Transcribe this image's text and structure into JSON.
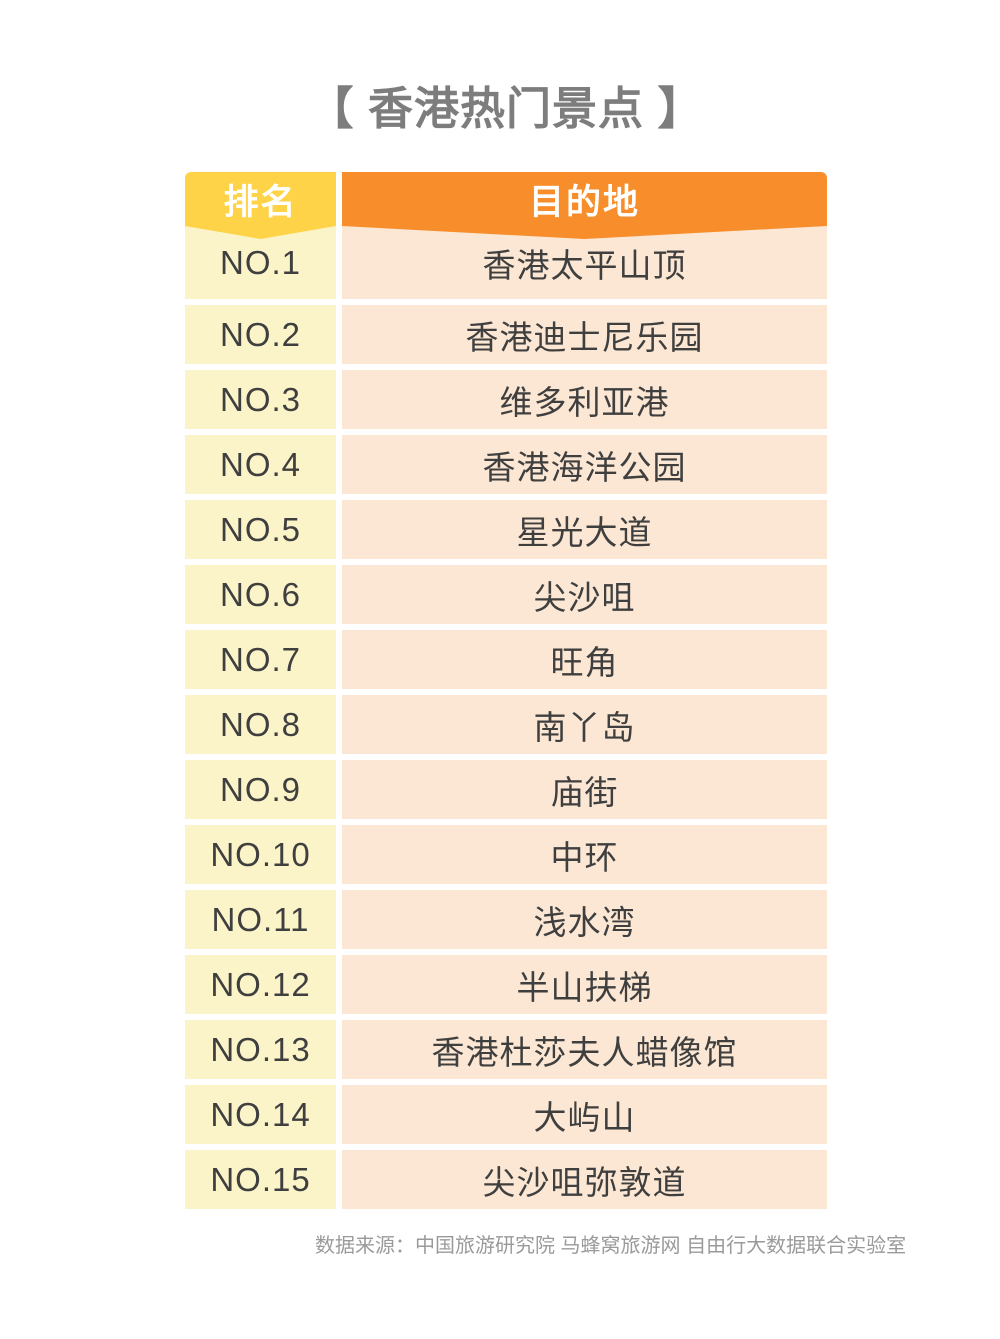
{
  "chart_data": {
    "type": "table",
    "title": "【 香港热门景点 】",
    "columns": [
      "排名",
      "目的地"
    ],
    "rows": [
      [
        "NO.1",
        "香港太平山顶"
      ],
      [
        "NO.2",
        "香港迪士尼乐园"
      ],
      [
        "NO.3",
        "维多利亚港"
      ],
      [
        "NO.4",
        "香港海洋公园"
      ],
      [
        "NO.5",
        "星光大道"
      ],
      [
        "NO.6",
        "尖沙咀"
      ],
      [
        "NO.7",
        "旺角"
      ],
      [
        "NO.8",
        "南丫岛"
      ],
      [
        "NO.9",
        "庙街"
      ],
      [
        "NO.10",
        "中环"
      ],
      [
        "NO.11",
        "浅水湾"
      ],
      [
        "NO.12",
        "半山扶梯"
      ],
      [
        "NO.13",
        "香港杜莎夫人蜡像馆"
      ],
      [
        "NO.14",
        "大屿山"
      ],
      [
        "NO.15",
        "尖沙咀弥敦道"
      ]
    ],
    "source": "数据来源：中国旅游研究院 马蜂窝旅游网 自由行大数据联合实验室"
  },
  "colors": {
    "header-yellow": "#ffd348",
    "header-orange": "#f78e2b",
    "row-yellow": "#fcf4c9",
    "row-peach": "#fbe7d3",
    "title-gray": "#7d7d7d",
    "text-dark": "#3f3f3f",
    "footer-gray": "#9a9a9a"
  }
}
